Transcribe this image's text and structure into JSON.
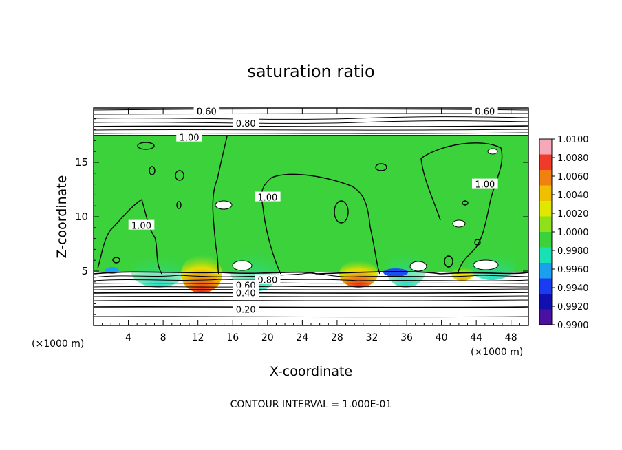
{
  "chart_data": {
    "type": "heatmap",
    "title": "saturation ratio",
    "xlabel": "X-coordinate",
    "ylabel": "Z-coordinate",
    "x_unit_left": "(×1000 m)",
    "x_unit_right": "(×1000 m)",
    "footer": "CONTOUR INTERVAL = 1.000E-01",
    "xlim": [
      0,
      50
    ],
    "ylim": [
      0,
      20
    ],
    "x_ticks": [
      4,
      8,
      12,
      16,
      20,
      24,
      28,
      32,
      36,
      40,
      44,
      48
    ],
    "y_ticks": [
      5,
      10,
      15
    ],
    "colorbar": {
      "labels": [
        "1.0100",
        "1.0080",
        "1.0060",
        "1.0040",
        "1.0020",
        "1.0000",
        "0.9980",
        "0.9960",
        "0.9940",
        "0.9920",
        "0.9900"
      ],
      "colors": [
        "#f7a8b8",
        "#f03a2a",
        "#f08010",
        "#f0c000",
        "#e0e800",
        "#8ee01a",
        "#3cd23c",
        "#18e2b4",
        "#1aa0ee",
        "#1a3cf0",
        "#1010b0",
        "#4a10a0"
      ]
    },
    "contour_labels": [
      {
        "text": "0.60",
        "x": 13,
        "z": 19.7
      },
      {
        "text": "0.60",
        "x": 45,
        "z": 19.7
      },
      {
        "text": "0.80",
        "x": 17.5,
        "z": 18.6
      },
      {
        "text": "1.00",
        "x": 11,
        "z": 17.3
      },
      {
        "text": "1.00",
        "x": 20,
        "z": 11.8
      },
      {
        "text": "1.00",
        "x": 5.5,
        "z": 9.2
      },
      {
        "text": "1.00",
        "x": 45,
        "z": 13
      },
      {
        "text": "0.80",
        "x": 20,
        "z": 4.2
      },
      {
        "text": "0.60",
        "x": 17.5,
        "z": 3.7
      },
      {
        "text": "0.40",
        "x": 17.5,
        "z": 3.0
      },
      {
        "text": "0.20",
        "x": 17.5,
        "z": 1.5
      }
    ],
    "hotspots": [
      {
        "x": 12.5,
        "z": 5.0,
        "level": 1.0075
      },
      {
        "x": 29.8,
        "z": 5.0,
        "level": 1.0065
      },
      {
        "x": 42.5,
        "z": 5.0,
        "level": 1.004
      }
    ]
  }
}
